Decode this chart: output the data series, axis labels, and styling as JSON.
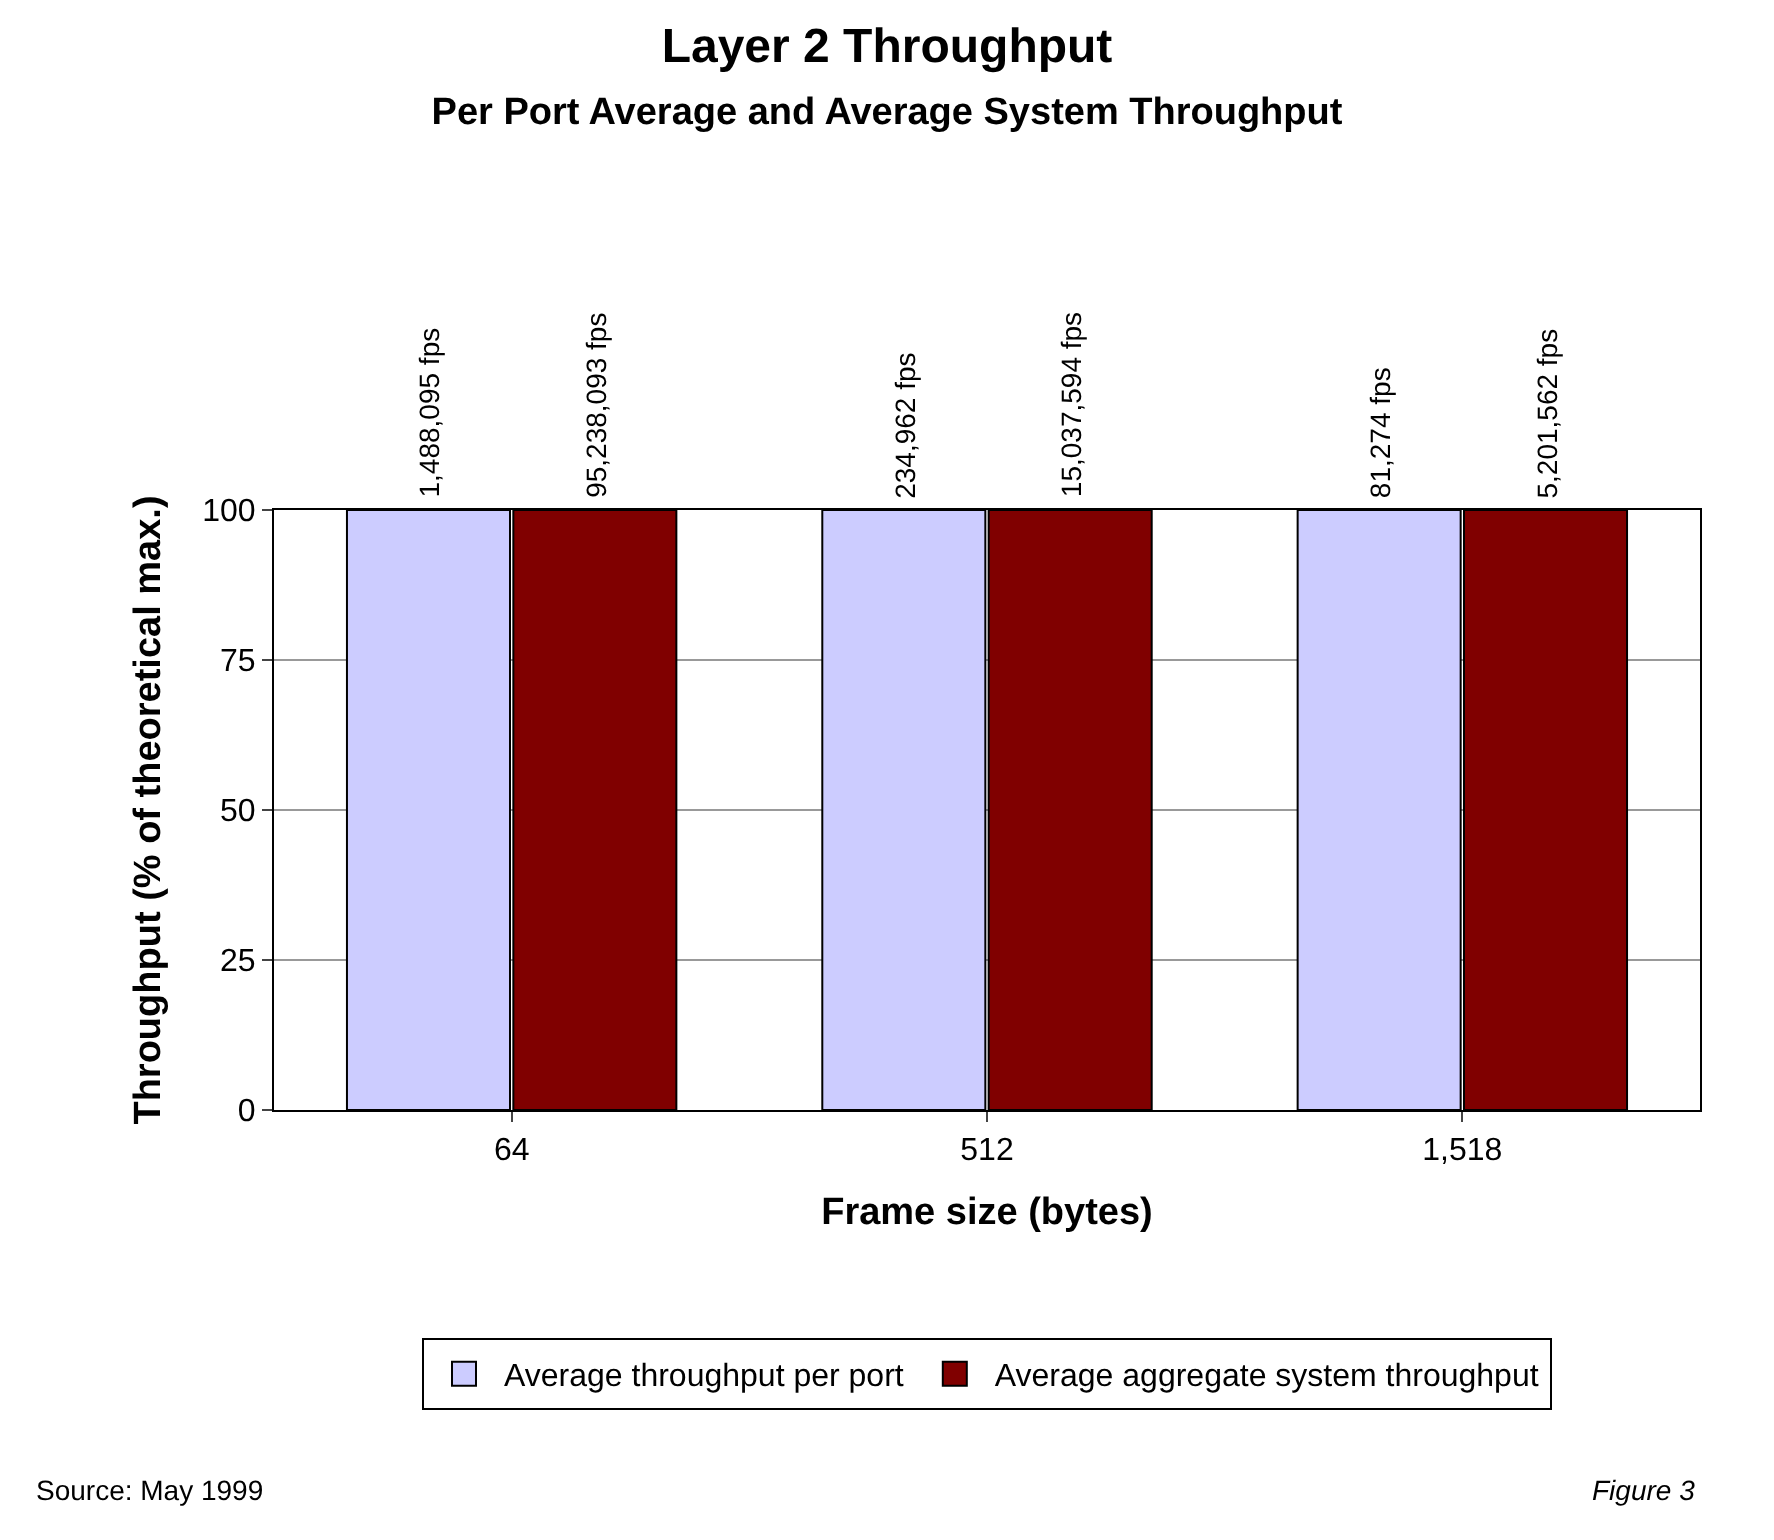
{
  "chart_data": {
    "type": "bar",
    "title": "Layer 2 Throughput",
    "subtitle": "Per Port Average and Average System Throughput",
    "xlabel": "Frame size (bytes)",
    "ylabel": "Throughput (% of theoretical max.)",
    "categories": [
      "64",
      "512",
      "1,518"
    ],
    "series": [
      {
        "name": "Average throughput per port",
        "color": "#ccccff",
        "values": [
          100,
          100,
          100
        ]
      },
      {
        "name": "Average aggregate system throughput",
        "color": "#800000",
        "values": [
          100,
          100,
          100
        ]
      }
    ],
    "ylim": [
      0,
      100
    ],
    "yticks": [
      0,
      25,
      50,
      75,
      100
    ],
    "grid": "y",
    "legend": "bottom",
    "annotations": [
      {
        "text": "1,488,095 fps",
        "x": "64",
        "y": 100
      },
      {
        "text": "95,238,093 fps",
        "x": "64",
        "y": 100
      },
      {
        "text": "234,962 fps",
        "x": "512",
        "y": 100
      },
      {
        "text": "15,037,594 fps",
        "x": "512",
        "y": 100
      },
      {
        "text": "81,274 fps",
        "x": "1,518",
        "y": 100
      },
      {
        "text": "5,201,562 fps",
        "x": "1,518",
        "y": 100
      },
      "Source: May 1999",
      "Figure 3"
    ]
  }
}
